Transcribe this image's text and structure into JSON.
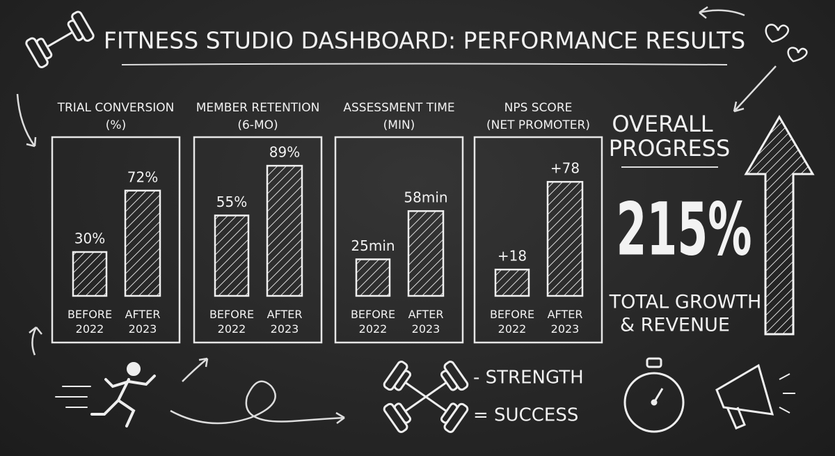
{
  "header": {
    "title": "FITNESS STUDIO DASHBOARD: PERFORMANCE RESULTS"
  },
  "chart_data": [
    {
      "type": "bar",
      "title": "TRIAL CONVERSION",
      "subtitle": "(%)",
      "categories": [
        "BEFORE 2022",
        "AFTER 2023"
      ],
      "values": [
        30,
        72
      ],
      "value_labels": [
        "30%",
        "72%"
      ],
      "color": "#f0f0f0"
    },
    {
      "type": "bar",
      "title": "MEMBER RETENTION",
      "subtitle": "(6-MO)",
      "categories": [
        "BEFORE 2022",
        "AFTER 2023"
      ],
      "values": [
        55,
        89
      ],
      "value_labels": [
        "55%",
        "89%"
      ],
      "color": "#f0f0f0"
    },
    {
      "type": "bar",
      "title": "ASSESSMENT TIME",
      "subtitle": "(MIN)",
      "categories": [
        "BEFORE 2022",
        "AFTER 2023"
      ],
      "values": [
        25,
        58
      ],
      "value_labels": [
        "25min",
        "58min"
      ],
      "color": "#f0f0f0"
    },
    {
      "type": "bar",
      "title": "NPS SCORE",
      "subtitle": "(NET PROMOTER)",
      "categories": [
        "BEFORE 2022",
        "AFTER 2023"
      ],
      "values": [
        18,
        78
      ],
      "value_labels": [
        "+18",
        "+78"
      ],
      "color": "#f0f0f0"
    }
  ],
  "summary": {
    "heading": [
      "OVERALL",
      "PROGRESS"
    ],
    "value": "215%",
    "caption": [
      "TOTAL GROWTH",
      "& REVENUE"
    ]
  },
  "motto": [
    "- STRENGTH",
    "= SUCCESS"
  ]
}
